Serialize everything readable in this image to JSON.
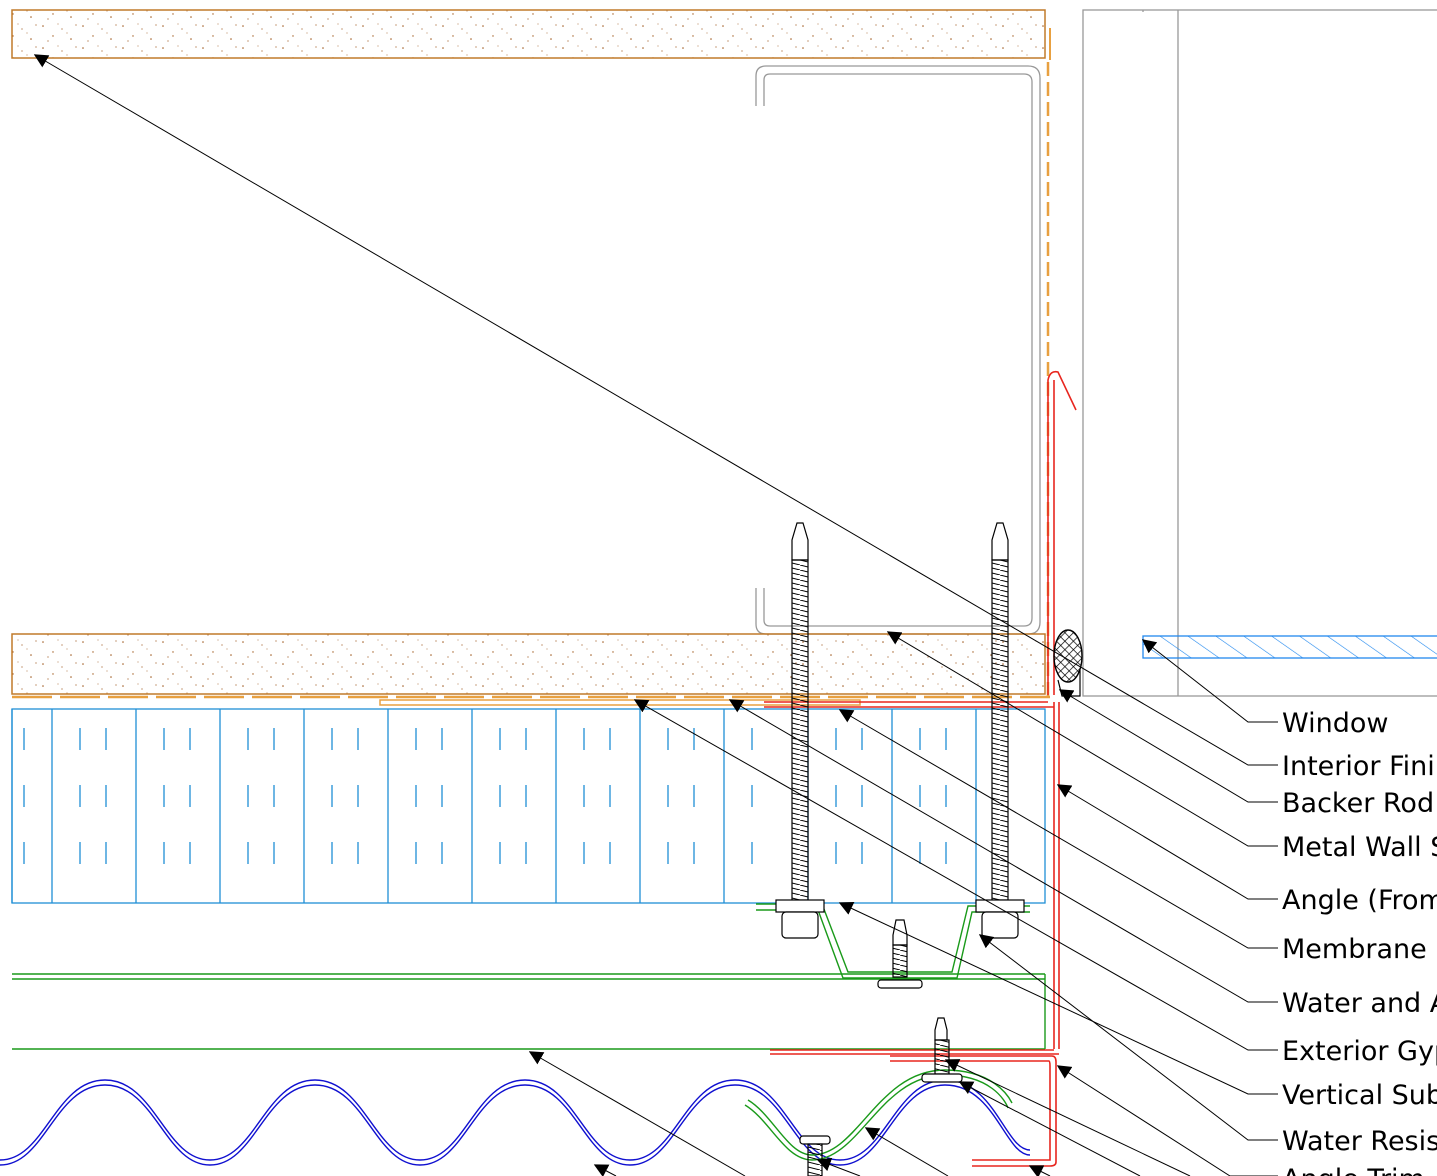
{
  "labels": [
    "Window",
    "Interior Fini",
    "Backer Rod",
    "Metal Wall S",
    "Angle (From",
    "Membrane",
    "Water and A",
    "Exterior Gyp",
    "Vertical Sub",
    "Water Resis",
    "Angle Trim"
  ],
  "colors": {
    "background": "#ffffff",
    "linework": "#000000",
    "gypsum_edge": "#c07a2a",
    "speckle": "#a05a20",
    "insulation": "#1f8fd6",
    "flashing": "#e8261f",
    "subgirt": "#1a9a1a",
    "panel": "#1010d0",
    "frame": "#999999",
    "window_hatch": "#2288ee"
  }
}
